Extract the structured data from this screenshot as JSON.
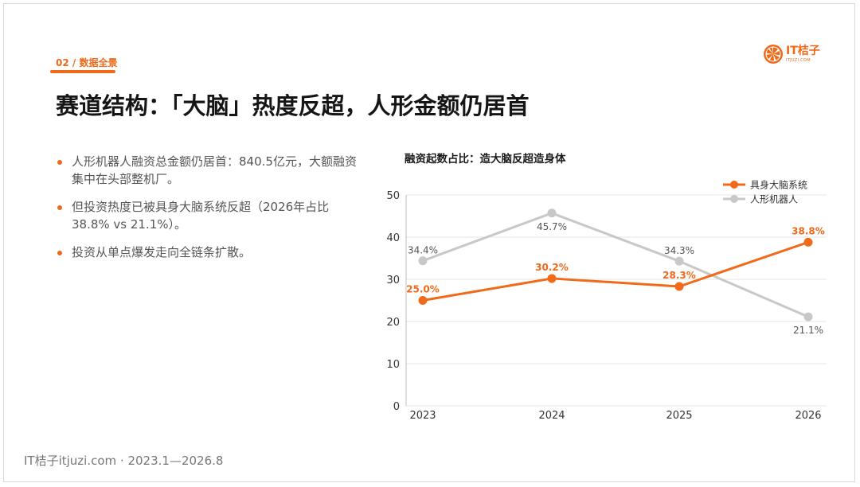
{
  "section": {
    "tag": "02 / 数据全景"
  },
  "logo": {
    "name": "IT桔子",
    "sub": "ITJUZI.COM"
  },
  "page_title": "赛道结构：「大脑」热度反超，人形金额仍居首",
  "bullets": [
    "人形机器人融资总金额仍居首：840.5亿元，大额融资集中在头部整机厂。",
    "但投资热度已被具身大脑系统反超（2026年占比38.8% vs 21.1%）。",
    "投资从单点爆发走向全链条扩散。"
  ],
  "footer": "IT桔子itjuzi.com · 2023.1—2026.8",
  "colors": {
    "accent": "#ee6a1b",
    "series_1": "#f06a1a",
    "series_2": "#c8c8c8"
  },
  "chart_data": {
    "type": "line",
    "title": "融资起数占比：造大脑反超造身体",
    "x": [
      "2023",
      "2024",
      "2025",
      "2026"
    ],
    "ylim": [
      0,
      50
    ],
    "yticks": [
      0,
      10,
      20,
      30,
      40,
      50
    ],
    "grid": true,
    "legend": "top-right",
    "series": [
      {
        "name": "具身大脑系统",
        "values": [
          25.0,
          30.2,
          28.3,
          38.8
        ],
        "labels": [
          "25.0%",
          "30.2%",
          "28.3%",
          "38.8%"
        ],
        "color": "#f06a1a"
      },
      {
        "name": "人形机器人",
        "values": [
          34.4,
          45.7,
          34.3,
          21.1
        ],
        "labels": [
          "34.4%",
          "45.7%",
          "34.3%",
          "21.1%"
        ],
        "color": "#c8c8c8"
      }
    ]
  }
}
